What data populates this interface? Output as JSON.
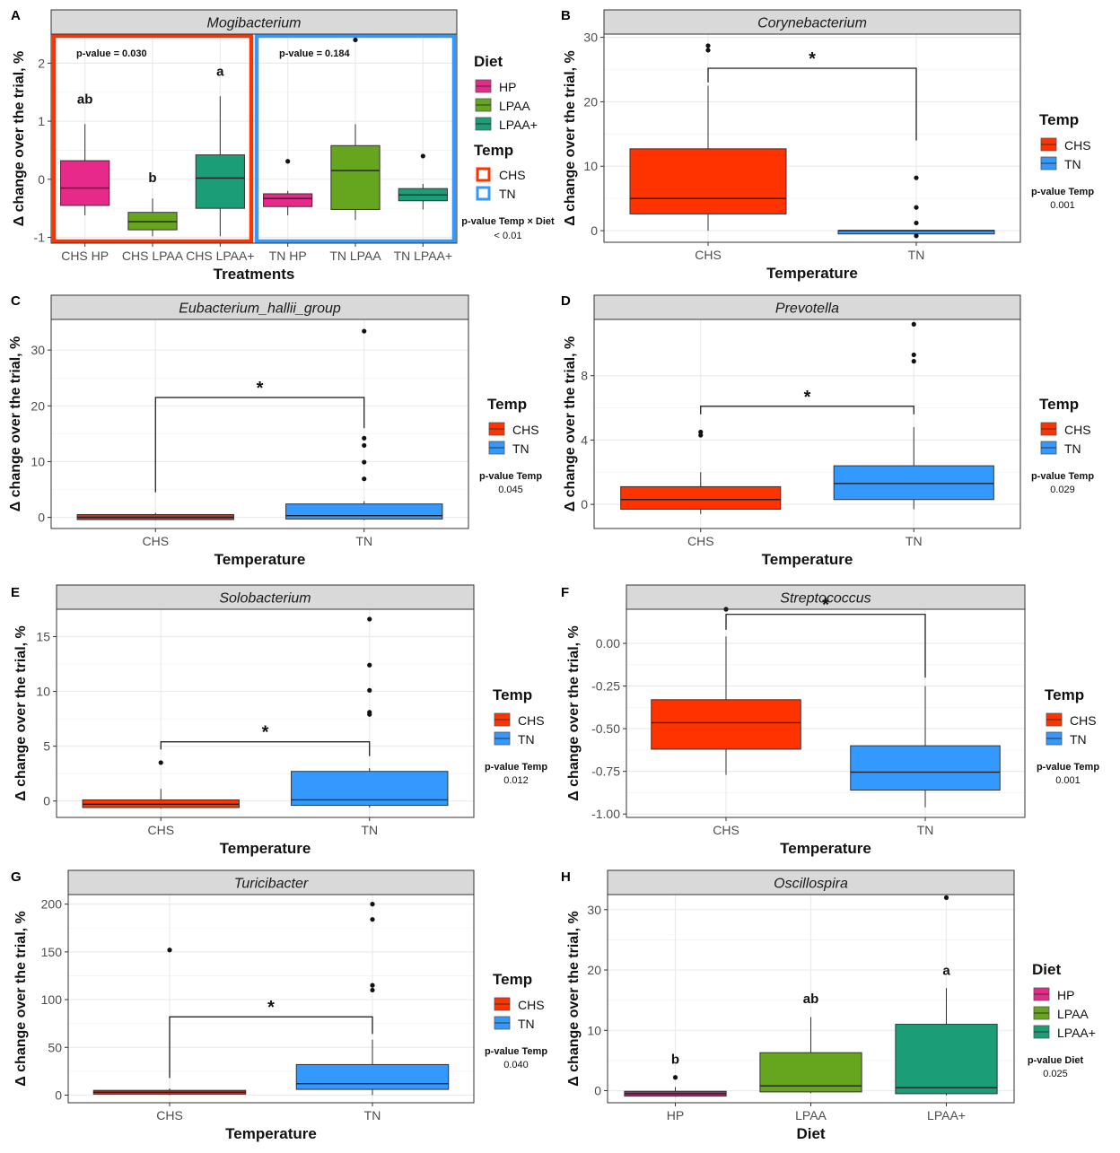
{
  "colors": {
    "HP": "#e7298a",
    "LPAA": "#66a61e",
    "LPAA+": "#1b9e77",
    "CHS": "#ff3300",
    "TN": "#3399ff",
    "CHS_dark": "#b23a2a",
    "HP_dark": "#a0306e",
    "strip": "#d9d9d9",
    "grid": "#ebebeb"
  },
  "chart_data": [
    {
      "panel_label": "A",
      "type": "boxplot",
      "title": "Mogibacterium",
      "xlabel": "Treatments",
      "ylabel": "Δ change over the trial, %",
      "ylim": [
        -1.1,
        2.5
      ],
      "yticks": [
        -1,
        0,
        1,
        2
      ],
      "categories": [
        "CHS HP",
        "CHS LPAA",
        "CHS LPAA+",
        "TN HP",
        "TN LPAA",
        "TN LPAA+"
      ],
      "boxes": [
        {
          "fill": "HP",
          "q1": -0.45,
          "median": -0.15,
          "q3": 0.32,
          "wmin": -0.62,
          "wmax": 0.95,
          "outliers": [],
          "letter": "ab",
          "letter_y": 1.3
        },
        {
          "fill": "LPAA",
          "q1": -0.87,
          "median": -0.73,
          "q3": -0.57,
          "wmin": -0.98,
          "wmax": -0.33,
          "outliers": [],
          "letter": "b",
          "letter_y": -0.05
        },
        {
          "fill": "LPAA+",
          "q1": -0.5,
          "median": 0.02,
          "q3": 0.42,
          "wmin": -0.98,
          "wmax": 1.43,
          "outliers": [],
          "letter": "a",
          "letter_y": 1.78
        },
        {
          "fill": "HP",
          "q1": -0.47,
          "median": -0.33,
          "q3": -0.25,
          "wmin": -0.62,
          "wmax": -0.2,
          "outliers": [
            0.31
          ],
          "letter": "",
          "letter_y": 0
        },
        {
          "fill": "LPAA",
          "q1": -0.52,
          "median": 0.15,
          "q3": 0.58,
          "wmin": -0.7,
          "wmax": 0.95,
          "outliers": [
            2.4
          ],
          "letter": "",
          "letter_y": 0
        },
        {
          "fill": "LPAA+",
          "q1": -0.37,
          "median": -0.27,
          "q3": -0.16,
          "wmin": -0.52,
          "wmax": -0.08,
          "outliers": [
            0.4
          ],
          "letter": "",
          "letter_y": 0
        }
      ],
      "groups": [
        {
          "temp": "CHS",
          "pvalue": "p-value  = 0.030"
        },
        {
          "temp": "TN",
          "pvalue": "p-value  = 0.184"
        }
      ],
      "legend": {
        "diet_title": "Diet",
        "diet_items": [
          "HP",
          "LPAA",
          "LPAA+"
        ],
        "temp_title": "Temp",
        "temp_items": [
          "CHS",
          "TN"
        ],
        "pvalue_label": "p-value Temp × Diet",
        "pvalue": "< 0.01"
      }
    },
    {
      "panel_label": "B",
      "type": "boxplot",
      "title": "Corynebacterium",
      "xlabel": "Temperature",
      "ylabel": "Δ change over the trial, %",
      "ylim": [
        -1.8,
        30.5
      ],
      "yticks": [
        0,
        10,
        20,
        30
      ],
      "categories": [
        "CHS",
        "TN"
      ],
      "boxes": [
        {
          "fill": "CHS",
          "q1": 2.6,
          "median": 5,
          "q3": 12.7,
          "wmin": 0,
          "wmax": 22.5,
          "outliers": [
            28,
            28.7
          ]
        },
        {
          "fill": "TN",
          "q1": -0.05,
          "median": 0,
          "q3": 0.05,
          "wmin": -0.1,
          "wmax": 0.1,
          "outliers": [
            8.2,
            3.6,
            1.2,
            -0.8
          ]
        }
      ],
      "signif": {
        "label": "*",
        "y": 25.2,
        "left_end": 23,
        "right_end": 14
      },
      "legend": {
        "title": "Temp",
        "items": [
          "CHS",
          "TN"
        ],
        "pvalue_label": "p-value Temp",
        "pvalue": "0.001"
      }
    },
    {
      "panel_label": "C",
      "type": "boxplot",
      "title": "Eubacterium_hallii_group",
      "xlabel": "Temperature",
      "ylabel": "Δ change over the trial, %",
      "ylim": [
        -2,
        35.5
      ],
      "yticks": [
        0,
        10,
        20,
        30
      ],
      "categories": [
        "CHS",
        "TN"
      ],
      "boxes": [
        {
          "fill": "CHS",
          "q1": -0.4,
          "median": 0,
          "q3": 0.5,
          "wmin": -0.5,
          "wmax": 0.8,
          "outliers": []
        },
        {
          "fill": "TN",
          "q1": -0.3,
          "median": 0.3,
          "q3": 2.4,
          "wmin": -0.5,
          "wmax": 2.9,
          "outliers": [
            33.4,
            14.2,
            12.9,
            9.9,
            6.9
          ]
        }
      ],
      "signif": {
        "label": "*",
        "y": 21.5,
        "left_end": 4.5,
        "right_end": 16
      },
      "legend": {
        "title": "Temp",
        "items": [
          "CHS",
          "TN"
        ],
        "pvalue_label": "p-value Temp",
        "pvalue": "0.045"
      }
    },
    {
      "panel_label": "D",
      "type": "boxplot",
      "title": "Prevotella",
      "xlabel": "Temperature",
      "ylabel": "Δ change over the trial, %",
      "ylim": [
        -1.5,
        11.5
      ],
      "yticks": [
        0,
        4,
        8
      ],
      "categories": [
        "CHS",
        "TN"
      ],
      "boxes": [
        {
          "fill": "CHS",
          "q1": -0.3,
          "median": 0.3,
          "q3": 1.1,
          "wmin": -0.6,
          "wmax": 2,
          "outliers": [
            4.3,
            4.5
          ]
        },
        {
          "fill": "TN",
          "q1": 0.3,
          "median": 1.3,
          "q3": 2.4,
          "wmin": -0.3,
          "wmax": 4.8,
          "outliers": [
            11.2,
            9.3,
            8.9
          ]
        }
      ],
      "signif": {
        "label": "*",
        "y": 6.1,
        "left_end": 5.6,
        "right_end": 5.6
      },
      "legend": {
        "title": "Temp",
        "items": [
          "CHS",
          "TN"
        ],
        "pvalue_label": "p-value Temp",
        "pvalue": "0.029"
      }
    },
    {
      "panel_label": "E",
      "type": "boxplot",
      "title": "Solobacterium",
      "xlabel": "Temperature",
      "ylabel": "Δ change over the trial, %",
      "ylim": [
        -1.5,
        17.5
      ],
      "yticks": [
        0,
        5,
        10,
        15
      ],
      "categories": [
        "CHS",
        "TN"
      ],
      "boxes": [
        {
          "fill": "CHS",
          "q1": -0.6,
          "median": -0.3,
          "q3": 0.1,
          "wmin": -0.7,
          "wmax": 1.1,
          "outliers": [
            3.5
          ]
        },
        {
          "fill": "TN",
          "q1": -0.4,
          "median": 0.1,
          "q3": 2.7,
          "wmin": -0.6,
          "wmax": 3,
          "outliers": [
            16.6,
            12.4,
            10.1,
            8.1,
            7.9
          ]
        }
      ],
      "signif": {
        "label": "*",
        "y": 5.4,
        "left_end": 4.7,
        "right_end": 4.1
      },
      "legend": {
        "title": "Temp",
        "items": [
          "CHS",
          "TN"
        ],
        "pvalue_label": "p-value Temp",
        "pvalue": "0.012"
      }
    },
    {
      "panel_label": "F",
      "type": "boxplot",
      "title": "Streptococcus",
      "xlabel": "Temperature",
      "ylabel": "Δ change over the trial, %",
      "ylim": [
        -1.02,
        0.2
      ],
      "yticks": [
        0,
        -0.25,
        -0.5,
        -0.75,
        -1
      ],
      "ytick_labels": [
        "0.00",
        "-0.25",
        "-0.50",
        "-0.75",
        "-1.00"
      ],
      "categories": [
        "CHS",
        "TN"
      ],
      "boxes": [
        {
          "fill": "CHS",
          "q1": -0.62,
          "median": -0.465,
          "q3": -0.33,
          "wmin": -0.77,
          "wmax": 0.04,
          "outliers": [
            0.2
          ]
        },
        {
          "fill": "TN",
          "q1": -0.86,
          "median": -0.755,
          "q3": -0.6,
          "wmin": -0.96,
          "wmax": -0.25,
          "outliers": []
        }
      ],
      "signif": {
        "label": "*",
        "y": 0.17,
        "left_end": 0.08,
        "right_end": -0.2
      },
      "legend": {
        "title": "Temp",
        "items": [
          "CHS",
          "TN"
        ],
        "pvalue_label": "p-value Temp",
        "pvalue": "0.001"
      }
    },
    {
      "panel_label": "G",
      "type": "boxplot",
      "title": "Turicibacter",
      "xlabel": "Temperature",
      "ylabel": "Δ change over the trial, %",
      "ylim": [
        -8,
        210
      ],
      "yticks": [
        0,
        50,
        100,
        150,
        200
      ],
      "categories": [
        "CHS",
        "TN"
      ],
      "boxes": [
        {
          "fill": "CHS",
          "q1": 1,
          "median": 3,
          "q3": 5,
          "wmin": 0,
          "wmax": 7,
          "outliers": [
            152
          ]
        },
        {
          "fill": "TN",
          "q1": 6,
          "median": 12,
          "q3": 32,
          "wmin": 0,
          "wmax": 58,
          "outliers": [
            200,
            184,
            115,
            110
          ]
        }
      ],
      "signif": {
        "label": "*",
        "y": 82,
        "left_end": 18,
        "right_end": 64
      },
      "legend": {
        "title": "Temp",
        "items": [
          "CHS",
          "TN"
        ],
        "pvalue_label": "p-value Temp",
        "pvalue": "0.040"
      }
    },
    {
      "panel_label": "H",
      "type": "boxplot",
      "title": "Oscillospira",
      "xlabel": "Diet",
      "ylabel": "Δ change over the trial, %",
      "ylim": [
        -2,
        32.5
      ],
      "yticks": [
        0,
        10,
        20,
        30
      ],
      "categories": [
        "HP",
        "LPAA",
        "LPAA+"
      ],
      "boxes": [
        {
          "fill": "HP",
          "q1": -0.9,
          "median": -0.5,
          "q3": -0.1,
          "wmin": -1,
          "wmax": 0.6,
          "outliers": [
            2.2
          ],
          "letter": "b",
          "letter_y": 4.5
        },
        {
          "fill": "LPAA",
          "q1": -0.2,
          "median": 0.8,
          "q3": 6.3,
          "wmin": -0.4,
          "wmax": 12.2,
          "outliers": [],
          "letter": "ab",
          "letter_y": 14.5
        },
        {
          "fill": "LPAA+",
          "q1": -0.5,
          "median": 0.5,
          "q3": 11,
          "wmin": -0.8,
          "wmax": 17,
          "outliers": [
            32
          ],
          "letter": "a",
          "letter_y": 19.2
        }
      ],
      "legend": {
        "title": "Diet",
        "items": [
          "HP",
          "LPAA",
          "LPAA+"
        ],
        "pvalue_label": "p-value Diet",
        "pvalue": "0.025"
      }
    }
  ]
}
